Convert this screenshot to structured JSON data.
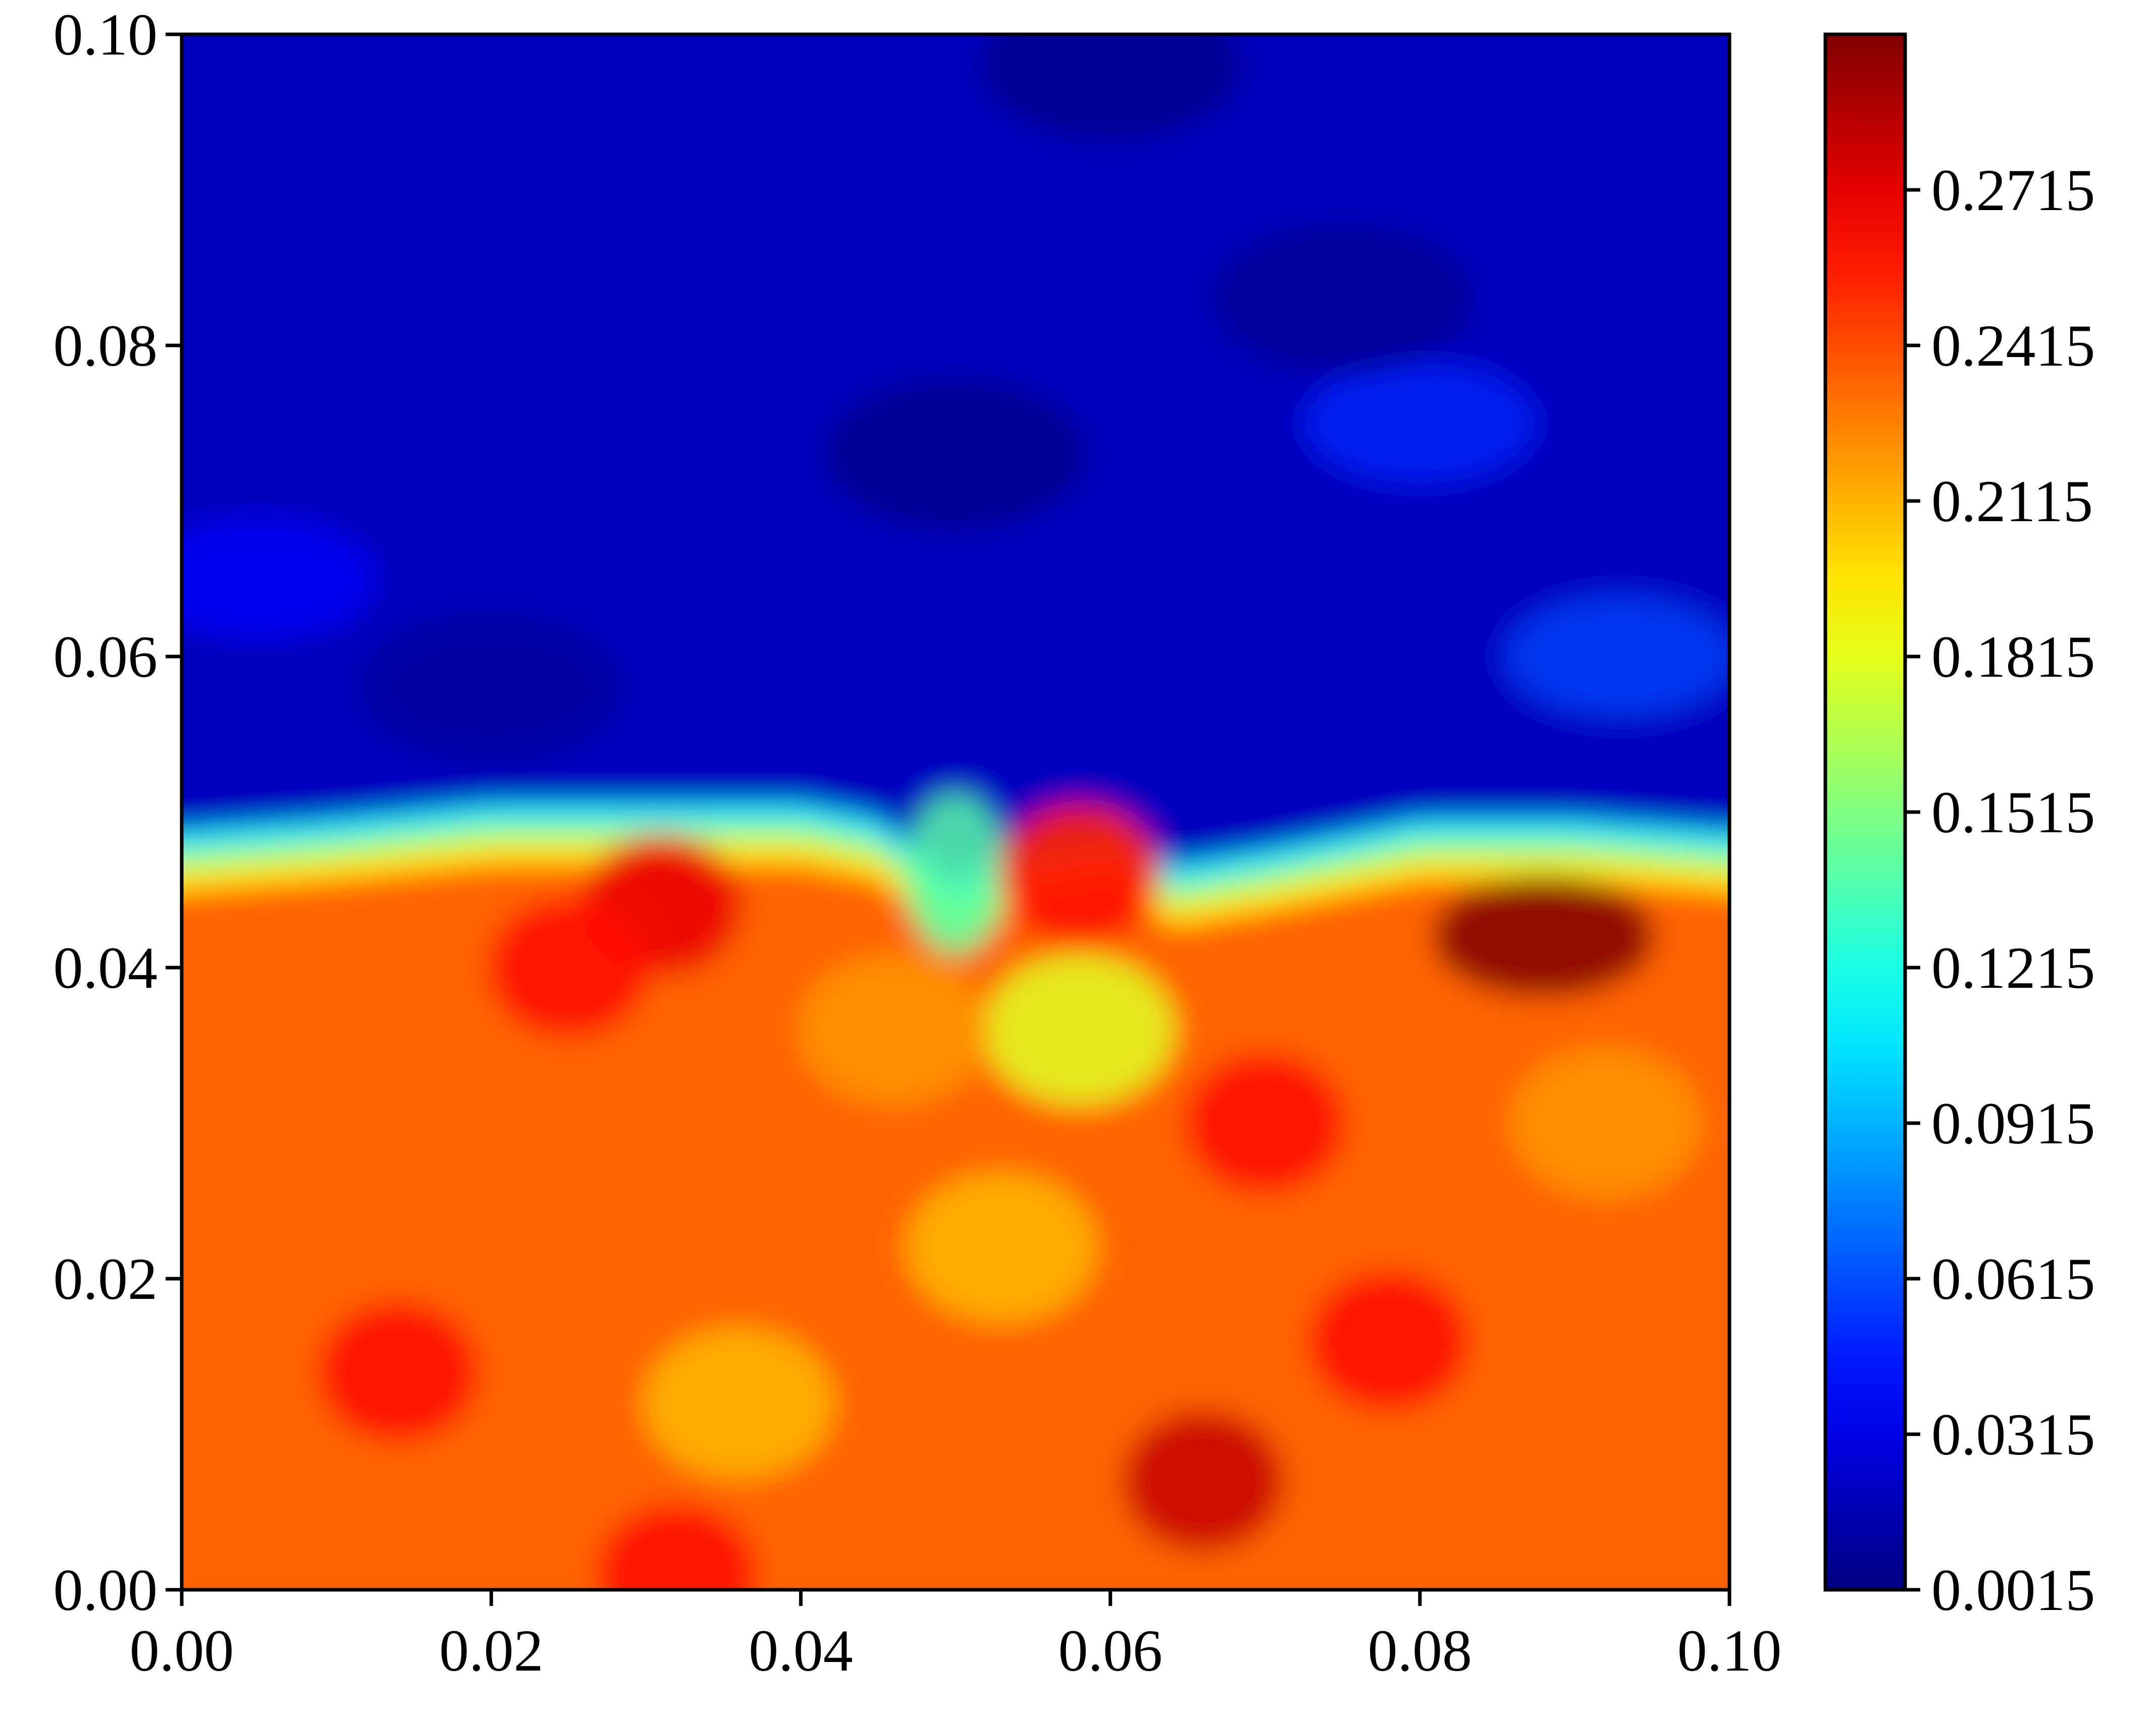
{
  "chart_data": {
    "type": "heatmap",
    "title": "",
    "xlabel": "",
    "ylabel": "",
    "xlim": [
      0.0,
      0.1
    ],
    "ylim": [
      0.0,
      0.1
    ],
    "x_ticks": [
      "0.00",
      "0.02",
      "0.04",
      "0.06",
      "0.08",
      "0.10"
    ],
    "y_ticks": [
      "0.00",
      "0.02",
      "0.04",
      "0.06",
      "0.08",
      "0.10"
    ],
    "colorbar": {
      "colormap": "jet",
      "range": [
        0.0015,
        0.3015
      ],
      "tick_values": [
        0.0015,
        0.0315,
        0.0615,
        0.0915,
        0.1215,
        0.1515,
        0.1815,
        0.2115,
        0.2415,
        0.2715
      ],
      "tick_labels": [
        "0.0015",
        "0.0315",
        "0.0615",
        "0.0915",
        "0.1215",
        "0.1515",
        "0.1815",
        "0.2115",
        "0.2415",
        "0.2715"
      ]
    },
    "grid": false,
    "field": {
      "upper_region_value": 0.02,
      "lower_region_value": 0.235,
      "interface_y": [
        [
          0.0,
          0.047
        ],
        [
          0.01,
          0.048
        ],
        [
          0.02,
          0.049
        ],
        [
          0.03,
          0.049
        ],
        [
          0.04,
          0.049
        ],
        [
          0.045,
          0.048
        ],
        [
          0.05,
          0.044
        ],
        [
          0.055,
          0.047
        ],
        [
          0.06,
          0.048
        ],
        [
          0.064,
          0.045
        ],
        [
          0.07,
          0.046
        ],
        [
          0.08,
          0.048
        ],
        [
          0.09,
          0.048
        ],
        [
          0.1,
          0.047
        ]
      ],
      "hot_spots": [
        {
          "x": 0.088,
          "y": 0.042,
          "value": 0.3
        },
        {
          "x": 0.066,
          "y": 0.007,
          "value": 0.28
        },
        {
          "x": 0.031,
          "y": 0.044,
          "value": 0.27
        },
        {
          "x": 0.058,
          "y": 0.046,
          "value": 0.26
        },
        {
          "x": 0.014,
          "y": 0.014,
          "value": 0.26
        },
        {
          "x": 0.025,
          "y": 0.04,
          "value": 0.26
        },
        {
          "x": 0.032,
          "y": 0.001,
          "value": 0.26
        },
        {
          "x": 0.07,
          "y": 0.03,
          "value": 0.26
        },
        {
          "x": 0.078,
          "y": 0.016,
          "value": 0.26
        }
      ],
      "cool_spots": [
        {
          "x": 0.058,
          "y": 0.036,
          "value": 0.18
        },
        {
          "x": 0.05,
          "y": 0.046,
          "value": 0.14
        },
        {
          "x": 0.036,
          "y": 0.012,
          "value": 0.21
        },
        {
          "x": 0.053,
          "y": 0.022,
          "value": 0.21
        },
        {
          "x": 0.046,
          "y": 0.036,
          "value": 0.22
        },
        {
          "x": 0.092,
          "y": 0.03,
          "value": 0.22
        }
      ],
      "upper_bright_patches": [
        {
          "x": 0.093,
          "y": 0.06,
          "value": 0.06
        },
        {
          "x": 0.08,
          "y": 0.075,
          "value": 0.05
        },
        {
          "x": 0.005,
          "y": 0.065,
          "value": 0.04
        }
      ],
      "upper_dark_patches": [
        {
          "x": 0.05,
          "y": 0.073,
          "value": 0.002
        },
        {
          "x": 0.06,
          "y": 0.098,
          "value": 0.002
        },
        {
          "x": 0.075,
          "y": 0.083,
          "value": 0.005
        },
        {
          "x": 0.02,
          "y": 0.058,
          "value": 0.008
        }
      ]
    }
  }
}
